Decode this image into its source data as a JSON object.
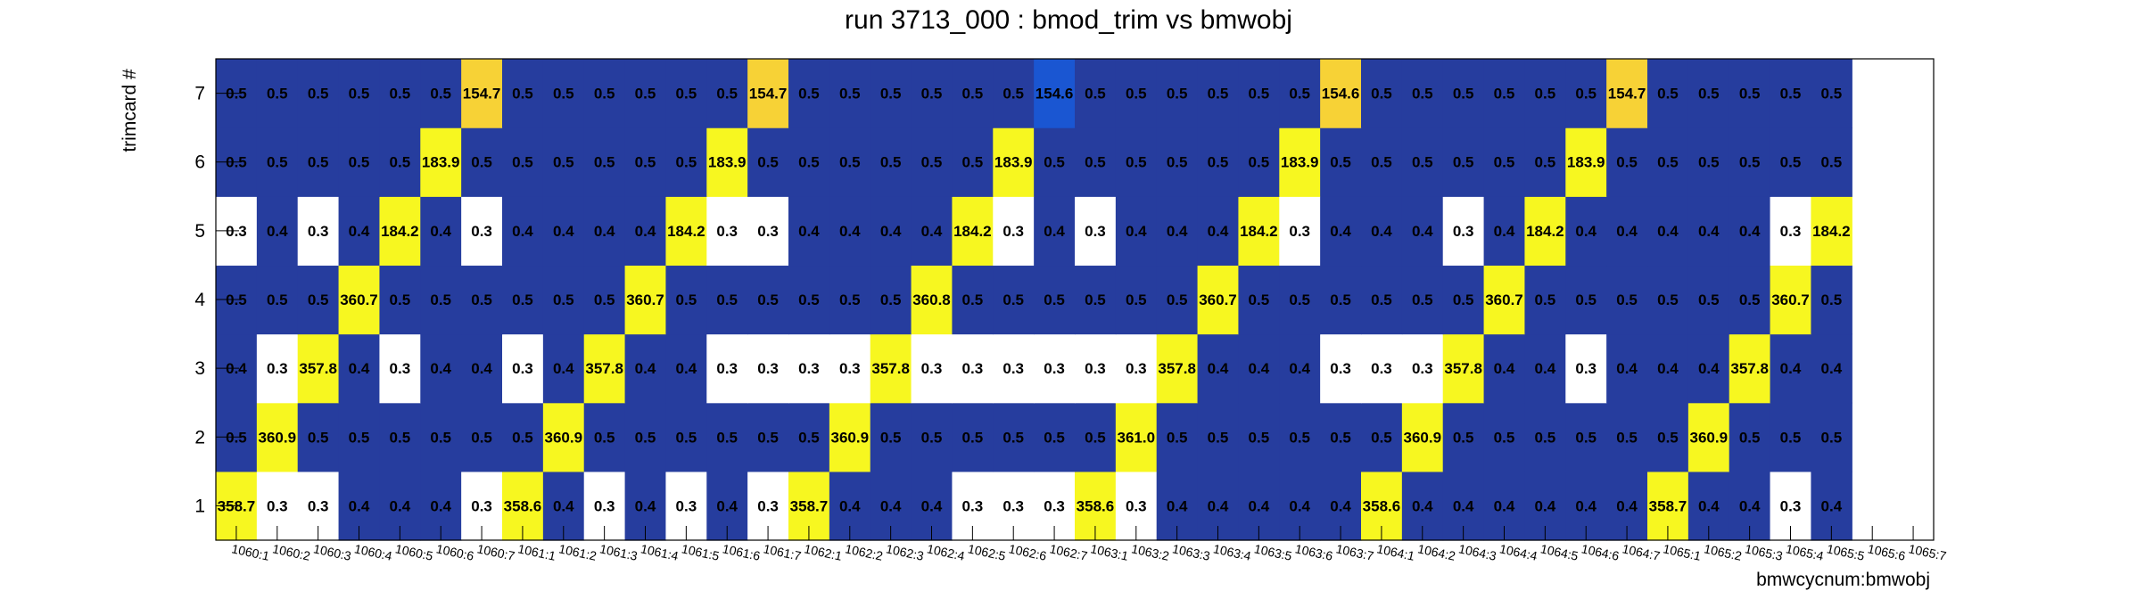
{
  "chart_data": {
    "type": "heatmap",
    "title": "run 3713_000 : bmod_trim vs bmwobj",
    "xlabel": "bmwcycnum:bmwobj",
    "ylabel": "trimcard #",
    "x_categories": [
      "1060:1",
      "1060:2",
      "1060:3",
      "1060:4",
      "1060:5",
      "1060:6",
      "1060:7",
      "1061:1",
      "1061:2",
      "1061:3",
      "1061:4",
      "1061:5",
      "1061:6",
      "1061:7",
      "1062:1",
      "1062:2",
      "1062:3",
      "1062:4",
      "1062:5",
      "1062:6",
      "1062:7",
      "1063:1",
      "1063:2",
      "1063:3",
      "1063:4",
      "1063:5",
      "1063:6",
      "1063:7",
      "1064:1",
      "1064:2",
      "1064:3",
      "1064:4",
      "1064:5",
      "1064:6",
      "1064:7",
      "1065:1",
      "1065:2",
      "1065:3",
      "1065:4",
      "1065:5",
      "1065:6",
      "1065:7"
    ],
    "y_categories": [
      "1",
      "2",
      "3",
      "4",
      "5",
      "6",
      "7"
    ],
    "rows": [
      {
        "y": "1",
        "values": [
          358.7,
          0.3,
          0.3,
          0.4,
          0.4,
          0.4,
          0.3,
          358.6,
          0.4,
          0.3,
          0.4,
          0.3,
          0.4,
          0.3,
          358.7,
          0.4,
          0.4,
          0.4,
          0.3,
          0.3,
          0.3,
          358.6,
          0.3,
          0.4,
          0.4,
          0.4,
          0.4,
          0.4,
          358.6,
          0.4,
          0.4,
          0.4,
          0.4,
          0.4,
          0.4,
          358.7,
          0.4,
          0.4,
          0.3,
          0.4,
          null,
          null
        ]
      },
      {
        "y": "2",
        "values": [
          0.5,
          360.9,
          0.5,
          0.5,
          0.5,
          0.5,
          0.5,
          0.5,
          360.9,
          0.5,
          0.5,
          0.5,
          0.5,
          0.5,
          0.5,
          360.9,
          0.5,
          0.5,
          0.5,
          0.5,
          0.5,
          0.5,
          361.0,
          0.5,
          0.5,
          0.5,
          0.5,
          0.5,
          0.5,
          360.9,
          0.5,
          0.5,
          0.5,
          0.5,
          0.5,
          0.5,
          360.9,
          0.5,
          0.5,
          0.5,
          null,
          null
        ]
      },
      {
        "y": "3",
        "values": [
          0.4,
          0.3,
          357.8,
          0.4,
          0.3,
          0.4,
          0.4,
          0.3,
          0.4,
          357.8,
          0.4,
          0.4,
          0.3,
          0.3,
          0.3,
          0.3,
          357.8,
          0.3,
          0.3,
          0.3,
          0.3,
          0.3,
          0.3,
          357.8,
          0.4,
          0.4,
          0.4,
          0.3,
          0.3,
          0.3,
          357.8,
          0.4,
          0.4,
          0.3,
          0.4,
          0.4,
          0.4,
          357.8,
          0.4,
          0.4,
          null,
          null
        ]
      },
      {
        "y": "4",
        "values": [
          0.5,
          0.5,
          0.5,
          360.7,
          0.5,
          0.5,
          0.5,
          0.5,
          0.5,
          0.5,
          360.7,
          0.5,
          0.5,
          0.5,
          0.5,
          0.5,
          0.5,
          360.8,
          0.5,
          0.5,
          0.5,
          0.5,
          0.5,
          0.5,
          360.7,
          0.5,
          0.5,
          0.5,
          0.5,
          0.5,
          0.5,
          360.7,
          0.5,
          0.5,
          0.5,
          0.5,
          0.5,
          0.5,
          360.7,
          0.5,
          null,
          null
        ]
      },
      {
        "y": "5",
        "values": [
          0.3,
          0.4,
          0.3,
          0.4,
          184.2,
          0.4,
          0.3,
          0.4,
          0.4,
          0.4,
          0.4,
          184.2,
          0.3,
          0.3,
          0.4,
          0.4,
          0.4,
          0.4,
          184.2,
          0.3,
          0.4,
          0.3,
          0.4,
          0.4,
          0.4,
          184.2,
          0.3,
          0.4,
          0.4,
          0.4,
          0.3,
          0.4,
          184.2,
          0.4,
          0.4,
          0.4,
          0.4,
          0.4,
          0.3,
          184.2,
          null,
          null
        ]
      },
      {
        "y": "6",
        "values": [
          0.5,
          0.5,
          0.5,
          0.5,
          0.5,
          183.9,
          0.5,
          0.5,
          0.5,
          0.5,
          0.5,
          0.5,
          183.9,
          0.5,
          0.5,
          0.5,
          0.5,
          0.5,
          0.5,
          183.9,
          0.5,
          0.5,
          0.5,
          0.5,
          0.5,
          0.5,
          183.9,
          0.5,
          0.5,
          0.5,
          0.5,
          0.5,
          0.5,
          183.9,
          0.5,
          0.5,
          0.5,
          0.5,
          0.5,
          0.5,
          null,
          null
        ]
      },
      {
        "y": "7",
        "values": [
          0.5,
          0.5,
          0.5,
          0.5,
          0.5,
          0.5,
          154.7,
          0.5,
          0.5,
          0.5,
          0.5,
          0.5,
          0.5,
          154.7,
          0.5,
          0.5,
          0.5,
          0.5,
          0.5,
          0.5,
          154.6,
          0.5,
          0.5,
          0.5,
          0.5,
          0.5,
          0.5,
          154.6,
          0.5,
          0.5,
          0.5,
          0.5,
          0.5,
          0.5,
          154.7,
          0.5,
          0.5,
          0.5,
          0.5,
          0.5,
          null,
          null
        ]
      }
    ],
    "colors": {
      "low": "#ffffff",
      "mid": "#263d9e",
      "mid_highlight": "#1a56d2",
      "high": "#f7f720",
      "high_mid": "#f7d236"
    },
    "grid": false,
    "legend": "none"
  }
}
